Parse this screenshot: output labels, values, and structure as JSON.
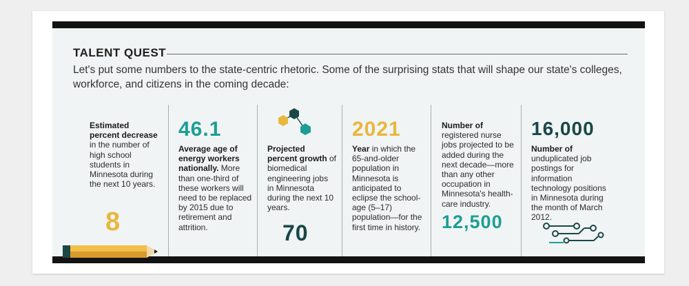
{
  "section": {
    "title": "TALENT QUEST",
    "intro": "Let's put some numbers to the state-centric rhetoric. Some of the surprising stats that will shape our state's colleges, workforce, and citizens in the coming decade:"
  },
  "stats": [
    {
      "value": "8",
      "bold": "Estimated percent decrease",
      "text": " in the number of high school students in Minnesota during the next 10 years."
    },
    {
      "value": "46.1",
      "bold": "Average age of energy workers nationally.",
      "text": " More than one-third of these workers will need to be replaced by 2015 due to retirement and attrition."
    },
    {
      "value": "70",
      "bold": "Projected percent growth",
      "text": " of biomedical engineering jobs in Minnesota during the next 10 years."
    },
    {
      "value": "2021",
      "bold": "Year",
      "text": " in which the 65-and-older population in Minnesota is anticipated to eclipse the school-age (5–17) population—for the first time in history."
    },
    {
      "value": "12,500",
      "bold": "Number of",
      "text": " registered nurse jobs projected to be added during the next decade—more than any other occupation in Minnesota's health-care industry."
    },
    {
      "value": "16,000",
      "bold": "Number of",
      "text": " unduplicated job postings for information technology positions in Minnesota during the month of March 2012."
    }
  ],
  "icons": {
    "pencil": "pencil-icon",
    "molecule": "hexagon-molecule-icon",
    "circuit": "circuit-icon"
  },
  "colors": {
    "teal": "#1c9e96",
    "dark_teal": "#1a4748",
    "gold": "#e8b73e",
    "bar": "#131313"
  }
}
